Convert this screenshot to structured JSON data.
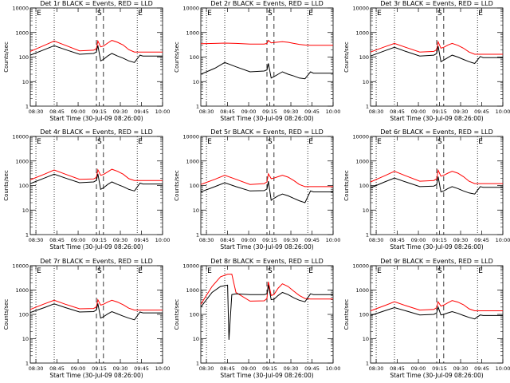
{
  "figure": {
    "xlabel": "Start Time (30-Jul-09 08:26:00)",
    "ylabel": "Counts/sec",
    "xtick_labels": [
      "08:30",
      "08:45",
      "09:00",
      "09:15",
      "09:30",
      "09:45",
      "10:00"
    ],
    "ytick_labels": [
      "1",
      "10",
      "100",
      "1000",
      "10000"
    ],
    "markers": [
      {
        "label": "E",
        "time": "08:30",
        "style": "dotted"
      },
      {
        "label": "",
        "time": "08:43",
        "style": "dotted"
      },
      {
        "label": "S",
        "time": "09:13",
        "style": "dashed"
      },
      {
        "label": "",
        "time": "09:18",
        "style": "dashed"
      },
      {
        "label": "E",
        "time": "09:42",
        "style": "dotted"
      }
    ],
    "colors": {
      "events": "#000000",
      "lld": "#ff0000",
      "axes": "#000000"
    }
  },
  "chart_data": [
    {
      "type": "line",
      "title": "Det 1r BLACK = Events, RED = LLD",
      "xlabel": "Start Time (30-Jul-09 08:26:00)",
      "ylabel": "Counts/sec",
      "x_minutes_after_0826": [
        0,
        10,
        17,
        25,
        35,
        45,
        47,
        48,
        50,
        52,
        55,
        58,
        62,
        66,
        70,
        74,
        78,
        80,
        82,
        94
      ],
      "ylim": [
        1,
        10000
      ],
      "yscale": "log",
      "series": [
        {
          "name": "LLD",
          "color": "#ff0000",
          "values": [
            170,
            300,
            450,
            300,
            180,
            190,
            220,
            450,
            260,
            280,
            370,
            480,
            400,
            310,
            200,
            160,
            160,
            160,
            160,
            160
          ]
        },
        {
          "name": "Events",
          "color": "#000000",
          "values": [
            120,
            200,
            290,
            200,
            130,
            140,
            160,
            300,
            70,
            80,
            110,
            140,
            110,
            90,
            70,
            60,
            120,
            110,
            110,
            110
          ]
        }
      ]
    },
    {
      "type": "line",
      "title": "Det 2r BLACK = Events, RED = LLD",
      "xlabel": "Start Time (30-Jul-09 08:26:00)",
      "ylabel": "Counts/sec",
      "x_minutes_after_0826": [
        0,
        10,
        17,
        25,
        35,
        45,
        47,
        48,
        50,
        52,
        55,
        58,
        62,
        66,
        70,
        74,
        78,
        80,
        82,
        94
      ],
      "ylim": [
        1,
        10000
      ],
      "yscale": "log",
      "series": [
        {
          "name": "LLD",
          "color": "#ff0000",
          "values": [
            350,
            360,
            370,
            360,
            340,
            340,
            360,
            480,
            380,
            390,
            410,
            420,
            400,
            360,
            330,
            310,
            300,
            300,
            300,
            300
          ]
        },
        {
          "name": "Events",
          "color": "#000000",
          "values": [
            20,
            35,
            60,
            40,
            25,
            27,
            30,
            55,
            14,
            16,
            20,
            25,
            20,
            17,
            14,
            13,
            25,
            22,
            22,
            22
          ]
        }
      ]
    },
    {
      "type": "line",
      "title": "Det 3r BLACK = Events, RED = LLD",
      "xlabel": "Start Time (30-Jul-09 08:26:00)",
      "ylabel": "Counts/sec",
      "x_minutes_after_0826": [
        0,
        10,
        17,
        25,
        35,
        45,
        47,
        48,
        50,
        52,
        55,
        58,
        62,
        66,
        70,
        74,
        78,
        80,
        82,
        94
      ],
      "ylim": [
        1,
        10000
      ],
      "yscale": "log",
      "series": [
        {
          "name": "LLD",
          "color": "#ff0000",
          "values": [
            160,
            260,
            360,
            250,
            160,
            170,
            200,
            420,
            230,
            250,
            310,
            360,
            300,
            230,
            160,
            130,
            130,
            130,
            130,
            130
          ]
        },
        {
          "name": "Events",
          "color": "#000000",
          "values": [
            110,
            180,
            250,
            170,
            110,
            120,
            140,
            280,
            65,
            75,
            95,
            120,
            100,
            80,
            65,
            55,
            105,
            95,
            95,
            95
          ]
        }
      ]
    },
    {
      "type": "line",
      "title": "Det 4r BLACK = Events, RED = LLD",
      "xlabel": "Start Time (30-Jul-09 08:26:00)",
      "ylabel": "Counts/sec",
      "x_minutes_after_0826": [
        0,
        10,
        17,
        25,
        35,
        45,
        47,
        48,
        50,
        52,
        55,
        58,
        62,
        66,
        70,
        74,
        78,
        80,
        82,
        94
      ],
      "ylim": [
        1,
        10000
      ],
      "yscale": "log",
      "series": [
        {
          "name": "LLD",
          "color": "#ff0000",
          "values": [
            170,
            290,
            430,
            290,
            180,
            185,
            215,
            440,
            260,
            280,
            360,
            460,
            380,
            290,
            190,
            160,
            160,
            160,
            160,
            160
          ]
        },
        {
          "name": "Events",
          "color": "#000000",
          "values": [
            120,
            200,
            290,
            200,
            130,
            140,
            160,
            300,
            70,
            80,
            110,
            140,
            110,
            90,
            70,
            60,
            125,
            115,
            115,
            115
          ]
        }
      ]
    },
    {
      "type": "line",
      "title": "Det 5r BLACK = Events, RED = LLD",
      "xlabel": "Start Time (30-Jul-09 08:26:00)",
      "ylabel": "Counts/sec",
      "x_minutes_after_0826": [
        0,
        10,
        17,
        25,
        35,
        45,
        47,
        48,
        50,
        52,
        55,
        58,
        62,
        66,
        70,
        74,
        78,
        80,
        82,
        94
      ],
      "ylim": [
        1,
        10000
      ],
      "yscale": "log",
      "series": [
        {
          "name": "LLD",
          "color": "#ff0000",
          "values": [
            110,
            180,
            260,
            180,
            110,
            120,
            140,
            300,
            190,
            200,
            230,
            260,
            220,
            160,
            110,
            90,
            90,
            90,
            90,
            90
          ]
        },
        {
          "name": "Events",
          "color": "#000000",
          "values": [
            55,
            90,
            130,
            90,
            60,
            62,
            72,
            150,
            25,
            30,
            38,
            45,
            38,
            30,
            24,
            20,
            60,
            55,
            55,
            55
          ]
        }
      ]
    },
    {
      "type": "line",
      "title": "Det 6r BLACK = Events, RED = LLD",
      "xlabel": "Start Time (30-Jul-09 08:26:00)",
      "ylabel": "Counts/sec",
      "x_minutes_after_0826": [
        0,
        10,
        17,
        25,
        35,
        45,
        47,
        48,
        50,
        52,
        55,
        58,
        62,
        66,
        70,
        74,
        78,
        80,
        82,
        94
      ],
      "ylim": [
        1,
        10000
      ],
      "yscale": "log",
      "series": [
        {
          "name": "LLD",
          "color": "#ff0000",
          "values": [
            140,
            250,
            380,
            250,
            150,
            160,
            190,
            420,
            240,
            260,
            320,
            380,
            320,
            230,
            150,
            120,
            120,
            120,
            120,
            120
          ]
        },
        {
          "name": "Events",
          "color": "#000000",
          "values": [
            80,
            140,
            200,
            140,
            90,
            95,
            110,
            230,
            55,
            60,
            75,
            90,
            75,
            60,
            50,
            45,
            90,
            85,
            85,
            85
          ]
        }
      ]
    },
    {
      "type": "line",
      "title": "Det 7r BLACK = Events, RED = LLD",
      "xlabel": "Start Time (30-Jul-09 08:26:00)",
      "ylabel": "Counts/sec",
      "x_minutes_after_0826": [
        0,
        10,
        17,
        25,
        35,
        45,
        47,
        48,
        50,
        52,
        55,
        58,
        62,
        66,
        70,
        74,
        78,
        80,
        82,
        94
      ],
      "ylim": [
        1,
        10000
      ],
      "yscale": "log",
      "series": [
        {
          "name": "LLD",
          "color": "#ff0000",
          "values": [
            160,
            270,
            380,
            260,
            170,
            175,
            205,
            400,
            240,
            260,
            320,
            380,
            320,
            250,
            180,
            150,
            150,
            150,
            150,
            150
          ]
        },
        {
          "name": "Events",
          "color": "#000000",
          "values": [
            120,
            190,
            270,
            190,
            125,
            130,
            150,
            280,
            70,
            80,
            105,
            130,
            105,
            85,
            70,
            60,
            125,
            115,
            115,
            115
          ]
        }
      ]
    },
    {
      "type": "line",
      "title": "Det 8r BLACK = Events, RED = LLD",
      "xlabel": "Start Time (30-Jul-09 08:26:00)",
      "ylabel": "Counts/sec",
      "x_minutes_after_0826": [
        0,
        8,
        14,
        19,
        20,
        22,
        25,
        35,
        45,
        47,
        48,
        50,
        52,
        55,
        58,
        62,
        66,
        70,
        74,
        78,
        80,
        82,
        94
      ],
      "ylim": [
        1,
        10000
      ],
      "yscale": "log",
      "series": [
        {
          "name": "LLD",
          "color": "#ff0000",
          "values": [
            260,
            1400,
            3500,
            4500,
            4500,
            4500,
            800,
            350,
            360,
            450,
            2200,
            600,
            650,
            1200,
            1800,
            1400,
            900,
            600,
            450,
            430,
            430,
            430,
            430
          ]
        },
        {
          "name": "Events",
          "color": "#000000",
          "values": [
            200,
            800,
            1400,
            1600,
            9,
            650,
            700,
            650,
            650,
            700,
            1600,
            400,
            420,
            600,
            800,
            650,
            480,
            380,
            330,
            700,
            650,
            650,
            650
          ]
        }
      ]
    },
    {
      "type": "line",
      "title": "Det 9r BLACK = Events, RED = LLD",
      "xlabel": "Start Time (30-Jul-09 08:26:00)",
      "ylabel": "Counts/sec",
      "x_minutes_after_0826": [
        0,
        10,
        17,
        25,
        35,
        45,
        47,
        48,
        50,
        52,
        55,
        58,
        62,
        66,
        70,
        74,
        78,
        80,
        82,
        94
      ],
      "ylim": [
        1,
        10000
      ],
      "yscale": "log",
      "series": [
        {
          "name": "LLD",
          "color": "#ff0000",
          "values": [
            140,
            230,
            330,
            230,
            150,
            160,
            190,
            330,
            220,
            240,
            300,
            370,
            320,
            250,
            170,
            140,
            140,
            140,
            140,
            140
          ]
        },
        {
          "name": "Events",
          "color": "#000000",
          "values": [
            90,
            140,
            190,
            140,
            95,
            100,
            115,
            200,
            95,
            100,
            115,
            130,
            110,
            90,
            75,
            65,
            95,
            90,
            90,
            90
          ]
        }
      ]
    }
  ]
}
